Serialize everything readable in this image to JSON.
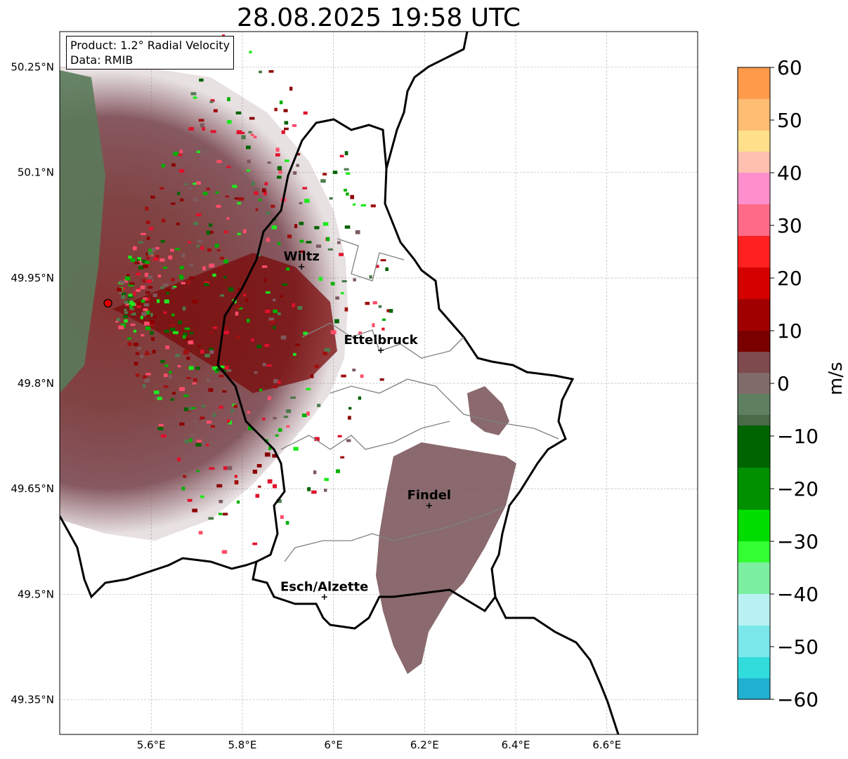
{
  "title": "28.08.2025 19:58 UTC",
  "info": {
    "product": "Product: 1.2° Radial Velocity",
    "data": "Data: RMIB"
  },
  "map": {
    "lon_range": [
      5.4,
      6.8
    ],
    "lat_range": [
      49.3,
      50.3
    ],
    "lon_ticks": [
      "5.6°E",
      "5.8°E",
      "6°E",
      "6.2°E",
      "6.4°E",
      "6.6°E"
    ],
    "lat_ticks": [
      "50.25°N",
      "50.1°N",
      "49.95°N",
      "49.8°N",
      "49.65°N",
      "49.5°N",
      "49.35°N"
    ],
    "grid": true,
    "radar_site": {
      "lon": 5.505,
      "lat": 49.914,
      "color": "#e00000"
    },
    "cities": [
      {
        "name": "Wiltz",
        "lon": 5.93,
        "lat": 49.966
      },
      {
        "name": "Ettelbruck",
        "lon": 6.104,
        "lat": 49.847
      },
      {
        "name": "Findel",
        "lon": 6.21,
        "lat": 49.626
      },
      {
        "name": "Esch/Alzette",
        "lon": 5.98,
        "lat": 49.496
      }
    ]
  },
  "colorbar": {
    "label": "m/s",
    "range": [
      -60,
      60
    ],
    "ticks": [
      "60",
      "50",
      "40",
      "30",
      "20",
      "10",
      "0",
      "−10",
      "−20",
      "−30",
      "−40",
      "−50",
      "−60"
    ]
  }
}
